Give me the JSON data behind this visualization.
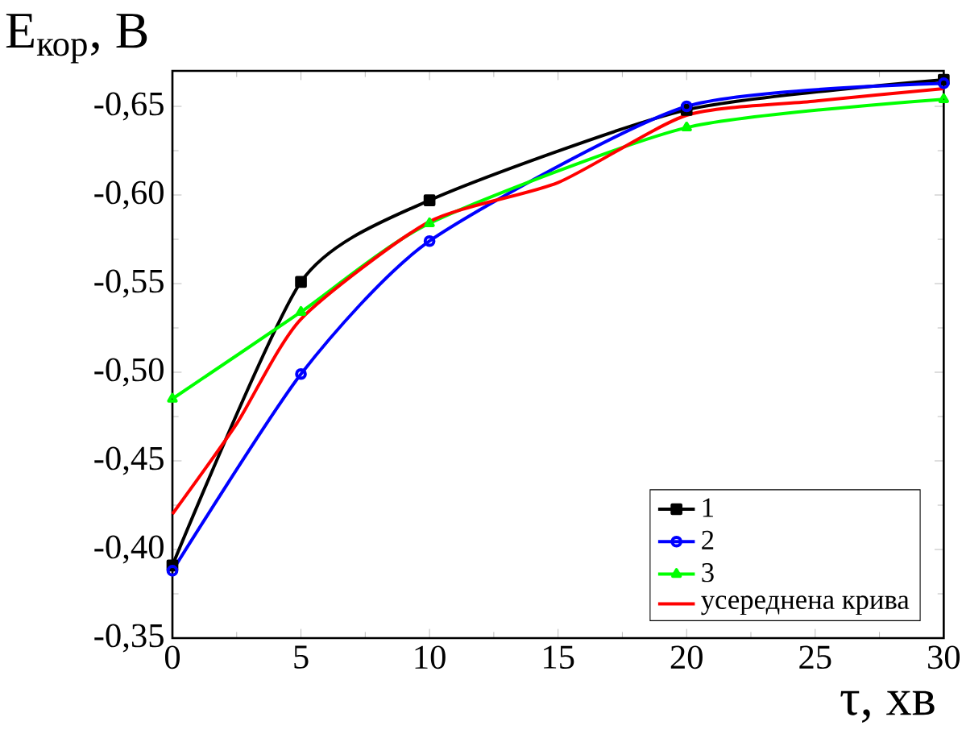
{
  "chart_data": {
    "type": "line",
    "xlabel": "τ, хв",
    "ylabel": "E$_{кор}$, В",
    "x": [
      0,
      5,
      10,
      20,
      30
    ],
    "series": [
      {
        "name": "1",
        "color": "#000000",
        "marker": "square",
        "values": [
          -0.391,
          -0.551,
          -0.597,
          -0.648,
          -0.665
        ]
      },
      {
        "name": "2",
        "color": "#0000ff",
        "marker": "circle",
        "values": [
          -0.388,
          -0.499,
          -0.574,
          -0.65,
          -0.663
        ]
      },
      {
        "name": "3",
        "color": "#00ff00",
        "marker": "triangle",
        "values": [
          -0.485,
          -0.534,
          -0.584,
          -0.638,
          -0.654
        ]
      },
      {
        "name": "усереднена крива",
        "color": "#ff0000",
        "marker": "none",
        "x": [
          0,
          2.5,
          5,
          10,
          15,
          20,
          25,
          30
        ],
        "values": [
          -0.42,
          -0.471,
          -0.53,
          -0.585,
          -0.607,
          -0.645,
          -0.653,
          -0.66
        ]
      }
    ],
    "xlim": [
      0,
      30
    ],
    "ylim": [
      -0.35,
      -0.67
    ],
    "xticks": [
      0,
      5,
      10,
      15,
      20,
      25,
      30
    ],
    "yticks": [
      {
        "value": -0.35,
        "label": "-0,35"
      },
      {
        "value": -0.4,
        "label": "-0,40"
      },
      {
        "value": -0.45,
        "label": "-0,45"
      },
      {
        "value": -0.5,
        "label": "-0,50"
      },
      {
        "value": -0.55,
        "label": "-0,55"
      },
      {
        "value": -0.6,
        "label": "-0,60"
      },
      {
        "value": -0.65,
        "label": "-0,65"
      }
    ],
    "grid": false,
    "legend": "bottom right",
    "line_style": "solid"
  }
}
